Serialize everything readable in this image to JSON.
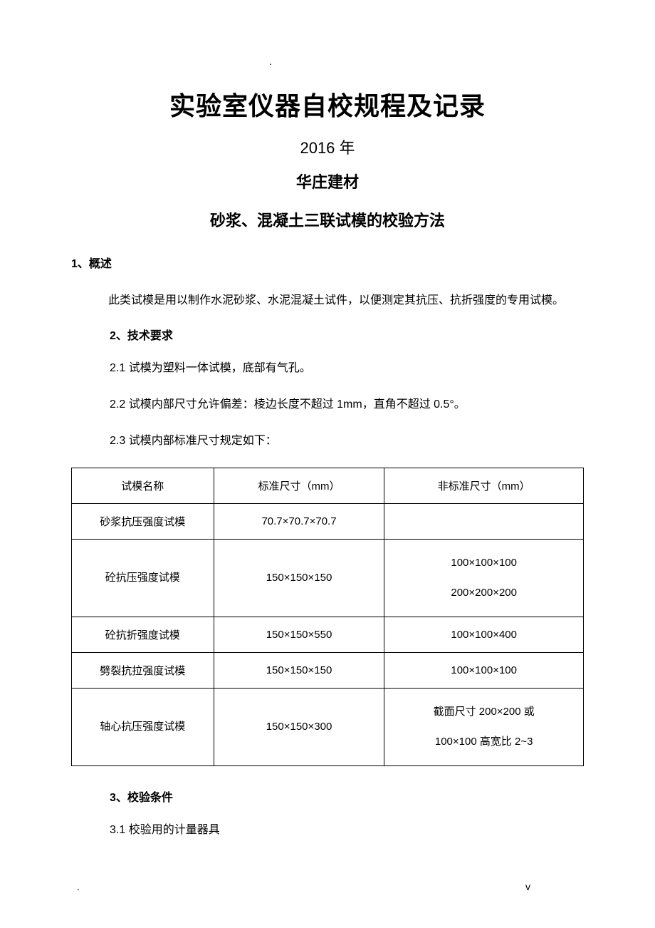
{
  "markers": {
    "dot": ".",
    "v": "v"
  },
  "titles": {
    "main": "实验室仪器自校规程及记录",
    "year": "2016 年",
    "org": "华庄建材",
    "sub": "砂浆、混凝土三联试模的校验方法"
  },
  "section1": {
    "heading": "1、概述",
    "para": "此类试模是用以制作水泥砂浆、水泥混凝土试件，以便测定其抗压、抗折强度的专用试模。"
  },
  "section2": {
    "heading": "2、技术要求",
    "item1": "2.1 试模为塑料一体试模，底部有气孔。",
    "item2": "2.2 试模内部尺寸允许偏差：棱边长度不超过 1mm，直角不超过 0.5°。",
    "item3": "2.3 试模内部标准尺寸规定如下："
  },
  "table": {
    "headers": {
      "c1": "试模名称",
      "c2": "标准尺寸（mm）",
      "c3": "非标准尺寸（mm）"
    },
    "rows": {
      "r1": {
        "c1": "砂浆抗压强度试模",
        "c2": "70.7×70.7×70.7",
        "c3": ""
      },
      "r2": {
        "c1": "砼抗压强度试模",
        "c2": "150×150×150",
        "c3_l1": "100×100×100",
        "c3_l2": "200×200×200"
      },
      "r3": {
        "c1": "砼抗折强度试模",
        "c2": "150×150×550",
        "c3": "100×100×400"
      },
      "r4": {
        "c1": "劈裂抗拉强度试模",
        "c2": "150×150×150",
        "c3": "100×100×100"
      },
      "r5": {
        "c1": "轴心抗压强度试模",
        "c2": "150×150×300",
        "c3_l1": "截面尺寸 200×200 或",
        "c3_l2": "100×100 高宽比 2~3"
      }
    }
  },
  "section3": {
    "heading": "3、校验条件",
    "item1": "3.1 校验用的计量器具"
  }
}
